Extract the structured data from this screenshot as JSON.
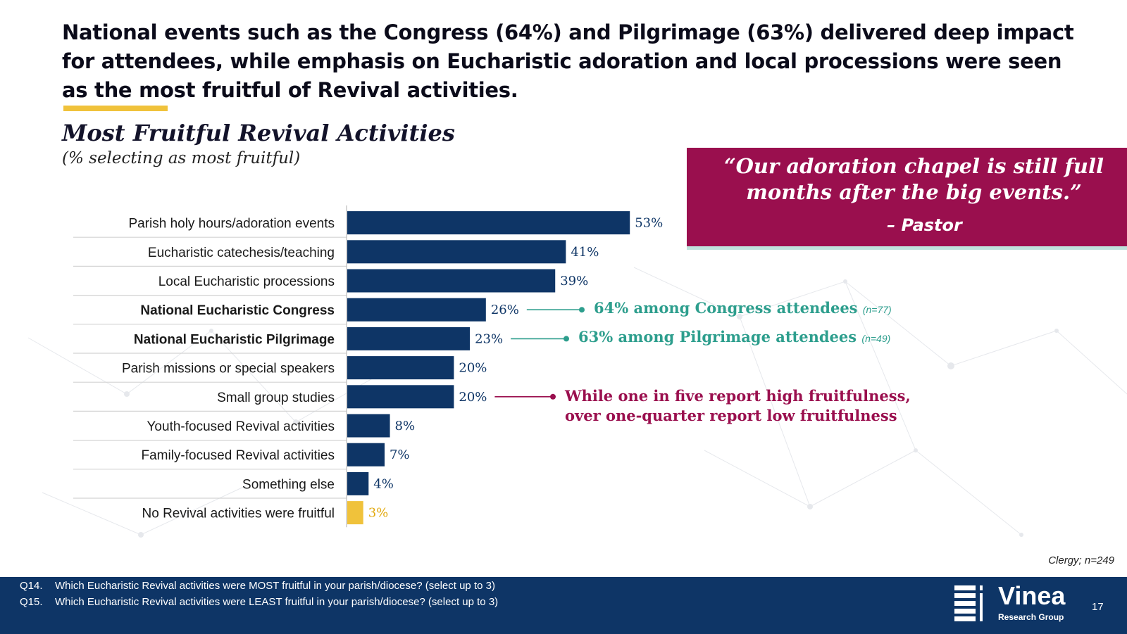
{
  "headline": "National events such as the Congress (64%) and Pilgrimage (63%) delivered deep impact for attendees, while emphasis on Eucharistic adoration and local processions were seen as the most fruitful of Revival activities.",
  "colors": {
    "bar": "#0e3566",
    "highlight_bar": "#f0c23b",
    "quote_bg": "#9a0f4e",
    "teal": "#2d9e8d",
    "magenta": "#9a0f4e",
    "accent": "#f0c23b"
  },
  "quote": {
    "text": "“Our adoration chapel is still full months after the big events.”",
    "author": "– Pastor"
  },
  "chart_data": {
    "type": "bar",
    "orientation": "horizontal",
    "title": "Most Fruitful Revival Activities",
    "subtitle": "(% selecting as most fruitful)",
    "xlabel": "",
    "ylabel": "",
    "xlim": [
      0,
      100
    ],
    "unit": "%",
    "categories": [
      "Parish holy hours/adoration events",
      "Eucharistic catechesis/teaching",
      "Local Eucharistic processions",
      "National Eucharistic Congress",
      "National Eucharistic Pilgrimage",
      "Parish missions or special speakers",
      "Small group studies",
      "Youth-focused Revival activities",
      "Family-focused Revival activities",
      "Something else",
      "No Revival activities were fruitful"
    ],
    "values": [
      53,
      41,
      39,
      26,
      23,
      20,
      20,
      8,
      7,
      4,
      3
    ],
    "value_labels": [
      "53%",
      "41%",
      "39%",
      "26%",
      "23%",
      "20%",
      "20%",
      "8%",
      "7%",
      "4%",
      "3%"
    ],
    "bold_categories": [
      3,
      4
    ],
    "highlight_index": 10,
    "annotations": [
      {
        "category_index": 3,
        "text": "64% among Congress attendees",
        "n": "(n=77)",
        "color": "teal"
      },
      {
        "category_index": 4,
        "text": "63% among Pilgrimage attendees",
        "n": "(n=49)",
        "color": "teal"
      },
      {
        "category_index": 6,
        "lines": [
          "While one in five report high fruitfulness,",
          "over one-quarter report low fruitfulness"
        ],
        "color": "magenta"
      }
    ],
    "sample": "Clergy; n=249"
  },
  "footer": {
    "questions": [
      {
        "num": "Q14.",
        "text": "Which Eucharistic Revival activities were MOST fruitful in your parish/diocese? (select up to 3)"
      },
      {
        "num": "Q15.",
        "text": "Which Eucharistic Revival activities were LEAST fruitful in your parish/diocese? (select up to 3)"
      }
    ],
    "logo_name": "Vinea",
    "logo_sub": "Research Group",
    "page_number": "17"
  }
}
